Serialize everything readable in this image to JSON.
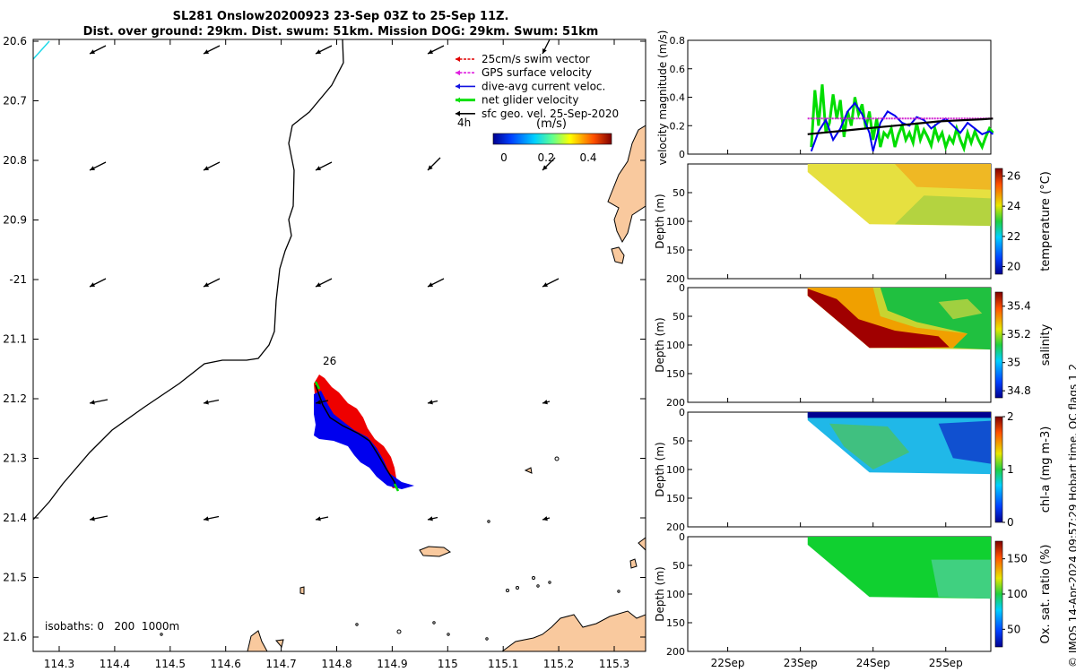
{
  "header": {
    "title_line1": "SL281 Onslow20200923 23-Sep 03Z to 25-Sep 11Z.",
    "title_line2": "Dist. over ground: 29km. Dist. swum: 51km. Mission DOG: 29km. Swum: 51km"
  },
  "copyright": "© IMOS 14-Apr-2024 09:57:29 Hobart time. QC flags 1  2",
  "map": {
    "lon_ticks": [
      "114.3",
      "114.4",
      "114.5",
      "114.6",
      "114.7",
      "114.8",
      "114.9",
      "115",
      "115.1",
      "115.2",
      "115.3"
    ],
    "lat_ticks": [
      "20.6",
      "20.7",
      "20.8",
      "20.9",
      "-21",
      "21.1",
      "21.2",
      "21.3",
      "21.4",
      "21.5",
      "21.6"
    ],
    "legend": [
      {
        "label": "25cm/s swim vector",
        "color": "#e00000"
      },
      {
        "label": "GPS surface velocity",
        "color": "#e020e0"
      },
      {
        "label": "dive-avg current veloc.",
        "color": "#1010e0"
      },
      {
        "label": "net glider velocity",
        "color": "#10e010"
      },
      {
        "label": "sfc geo. vel. 25-Sep-2020",
        "color": "#000000"
      }
    ],
    "legend_note": "4h",
    "colorbar": {
      "label": "(m/s)",
      "ticks": [
        "0",
        "0.2",
        "0.4"
      ],
      "range": [
        0,
        0.5
      ]
    },
    "day_label": "26",
    "isobaths_label": "isobaths: 0   200  1000m",
    "colors": {
      "land": "#f9c99e",
      "track_red": "#ee0000",
      "track_blue": "#0000ee",
      "track_green": "#00dd00",
      "isobath": "#000000"
    }
  },
  "chart_data": [
    {
      "type": "line",
      "ylabel": "velocity magnitude (m/s)",
      "ylim": [
        0,
        0.8
      ],
      "yticks": [
        "0",
        "0.2",
        "0.4",
        "0.6",
        "0.8"
      ],
      "x_ticks": [
        "22Sep",
        "23Sep",
        "24Sep",
        "25Sep"
      ],
      "series": [
        {
          "color": "#00dd00",
          "x": [
            23.15,
            23.2,
            23.25,
            23.3,
            23.35,
            23.4,
            23.45,
            23.5,
            23.55,
            23.6,
            23.65,
            23.7,
            23.75,
            23.8,
            23.85,
            23.9,
            23.95,
            24.0,
            24.05,
            24.1,
            24.15,
            24.2,
            24.25,
            24.3,
            24.35,
            24.4,
            24.45,
            24.5,
            24.55,
            24.6,
            24.65,
            24.7,
            24.75,
            24.8,
            24.85,
            24.9,
            24.95,
            25.0,
            25.05,
            25.1,
            25.15,
            25.2,
            25.25,
            25.3,
            25.35,
            25.4,
            25.45,
            25.5,
            25.55,
            25.6,
            25.65
          ],
          "y": [
            0.05,
            0.45,
            0.2,
            0.49,
            0.15,
            0.22,
            0.42,
            0.25,
            0.38,
            0.12,
            0.3,
            0.2,
            0.4,
            0.28,
            0.35,
            0.18,
            0.3,
            0.1,
            0.25,
            0.05,
            0.15,
            0.12,
            0.18,
            0.05,
            0.14,
            0.2,
            0.1,
            0.15,
            0.08,
            0.22,
            0.1,
            0.17,
            0.12,
            0.06,
            0.18,
            0.1,
            0.15,
            0.05,
            0.12,
            0.08,
            0.18,
            0.1,
            0.04,
            0.15,
            0.08,
            0.16,
            0.1,
            0.05,
            0.12,
            0.18,
            0.15
          ]
        },
        {
          "color": "#0000ee",
          "x": [
            23.15,
            23.25,
            23.35,
            23.45,
            23.55,
            23.65,
            23.75,
            23.85,
            23.95,
            24.0,
            24.1,
            24.2,
            24.3,
            24.4,
            24.5,
            24.6,
            24.7,
            24.8,
            24.9,
            25.0,
            25.1,
            25.2,
            25.3,
            25.4,
            25.5,
            25.6,
            25.65
          ],
          "y": [
            0.02,
            0.16,
            0.24,
            0.1,
            0.18,
            0.3,
            0.36,
            0.28,
            0.15,
            0.02,
            0.22,
            0.3,
            0.27,
            0.22,
            0.2,
            0.26,
            0.24,
            0.18,
            0.22,
            0.25,
            0.2,
            0.15,
            0.22,
            0.18,
            0.14,
            0.16,
            0.14
          ]
        },
        {
          "color": "#d020d0",
          "x": [
            23.1,
            23.4,
            23.7,
            24.0,
            24.3,
            24.6,
            24.9,
            25.2,
            25.5,
            25.65
          ],
          "y": [
            0.25,
            0.25,
            0.25,
            0.25,
            0.25,
            0.25,
            0.25,
            0.25,
            0.25,
            0.25
          ]
        },
        {
          "color": "#000000",
          "x": [
            23.1,
            23.3,
            23.5,
            23.7,
            23.9,
            24.1,
            24.3,
            24.5,
            24.7,
            24.9,
            25.1,
            25.3,
            25.5,
            25.65
          ],
          "y": [
            0.14,
            0.15,
            0.16,
            0.17,
            0.18,
            0.19,
            0.2,
            0.21,
            0.22,
            0.23,
            0.235,
            0.24,
            0.245,
            0.25
          ]
        }
      ]
    },
    {
      "type": "heatmap",
      "cbar_label": "temperature (°C)",
      "cbar_ticks": [
        "20",
        "22",
        "24",
        "26"
      ],
      "clim": [
        19.5,
        26.5
      ],
      "ylabel": "Depth (m)",
      "yticks": [
        "50",
        "100",
        "150",
        "200"
      ],
      "ylim": [
        0,
        200
      ],
      "x_ticks": [
        "22Sep",
        "23Sep",
        "24Sep",
        "25Sep"
      ]
    },
    {
      "type": "heatmap",
      "cbar_label": "salinity",
      "cbar_ticks": [
        "34.8",
        "35",
        "35.2",
        "35.4"
      ],
      "clim": [
        34.75,
        35.5
      ],
      "ylabel": "Depth (m)",
      "yticks": [
        "0",
        "50",
        "100",
        "150",
        "200"
      ],
      "ylim": [
        0,
        200
      ],
      "x_ticks": [
        "22Sep",
        "23Sep",
        "24Sep",
        "25Sep"
      ]
    },
    {
      "type": "heatmap",
      "cbar_label": "chl-a (mg m-3)",
      "cbar_ticks": [
        "0",
        "1",
        "2"
      ],
      "clim": [
        0,
        2
      ],
      "ylabel": "Depth (m)",
      "yticks": [
        "0",
        "50",
        "100",
        "150",
        "200"
      ],
      "ylim": [
        0,
        200
      ],
      "x_ticks": [
        "22Sep",
        "23Sep",
        "24Sep",
        "25Sep"
      ]
    },
    {
      "type": "heatmap",
      "cbar_label": "Ox. sat. ratio (%)",
      "cbar_ticks": [
        "50",
        "100",
        "150"
      ],
      "clim": [
        25,
        175
      ],
      "ylabel": "Depth (m)",
      "yticks": [
        "0",
        "50",
        "100",
        "150",
        "200"
      ],
      "ylim": [
        0,
        200
      ],
      "x_ticks": [
        "22Sep",
        "23Sep",
        "24Sep",
        "25Sep"
      ]
    }
  ]
}
